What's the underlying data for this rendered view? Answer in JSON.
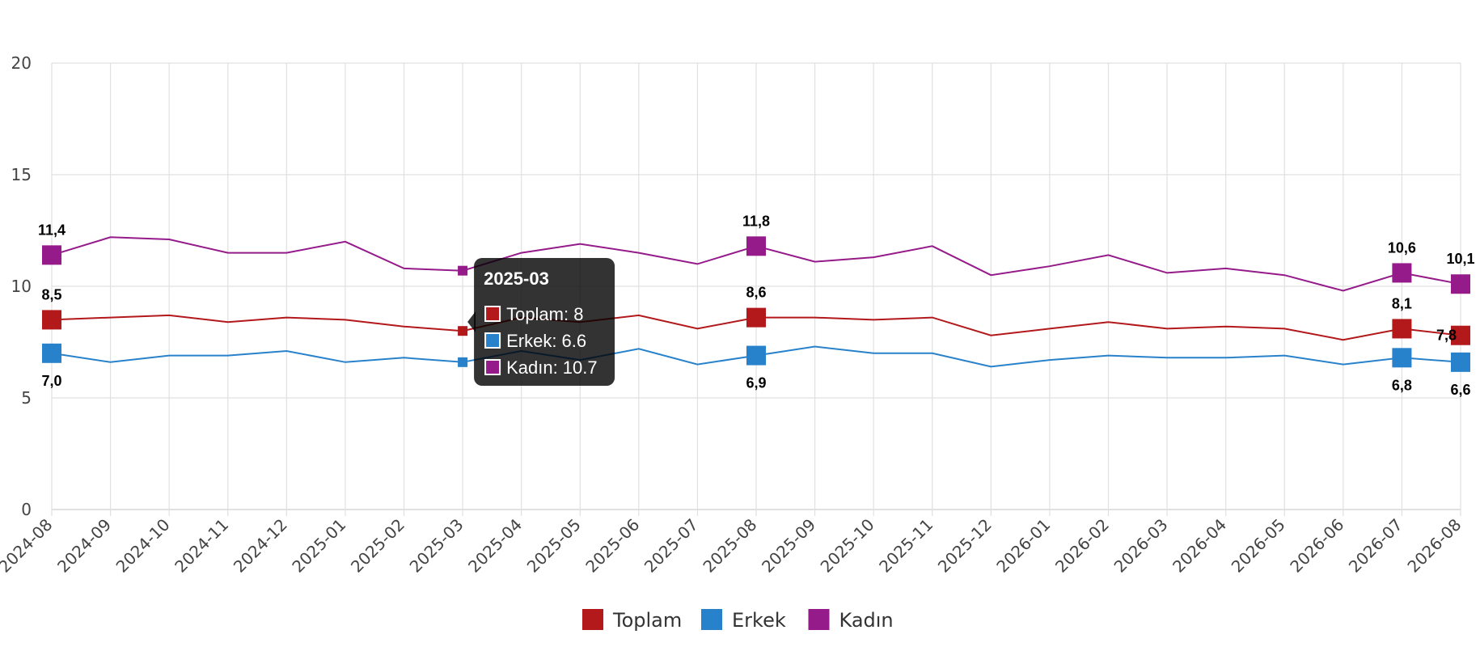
{
  "chart_data": {
    "type": "line",
    "categories": [
      "2024-08",
      "2024-09",
      "2024-10",
      "2024-11",
      "2024-12",
      "2025-01",
      "2025-02",
      "2025-03",
      "2025-04",
      "2025-05",
      "2025-06",
      "2025-07",
      "2025-08",
      "2025-09",
      "2025-10",
      "2025-11",
      "2025-12",
      "2026-01",
      "2026-02",
      "2026-03",
      "2026-04",
      "2026-05",
      "2026-06",
      "2026-07",
      "2026-08"
    ],
    "ylim": [
      0,
      20
    ],
    "yticks": [
      0,
      5,
      10,
      15,
      20
    ],
    "grid": true,
    "legend_position": "bottom-center",
    "series": [
      {
        "name": "Toplam",
        "color": "#b3181a",
        "values": [
          8.5,
          8.6,
          8.7,
          8.4,
          8.6,
          8.5,
          8.2,
          8.0,
          8.6,
          8.4,
          8.7,
          8.1,
          8.6,
          8.6,
          8.5,
          8.6,
          7.8,
          8.1,
          8.4,
          8.1,
          8.2,
          8.1,
          7.6,
          8.1,
          7.8
        ],
        "labels": [
          {
            "i": 0,
            "text": "8,5",
            "pos": "above"
          },
          {
            "i": 12,
            "text": "8,6",
            "pos": "above"
          },
          {
            "i": 23,
            "text": "8,1",
            "pos": "above"
          },
          {
            "i": 24,
            "text": "7,8",
            "pos": "left"
          }
        ]
      },
      {
        "name": "Erkek",
        "color": "#2882cb",
        "values": [
          7.0,
          6.6,
          6.9,
          6.9,
          7.1,
          6.6,
          6.8,
          6.6,
          7.1,
          6.7,
          7.2,
          6.5,
          6.9,
          7.3,
          7.0,
          7.0,
          6.4,
          6.7,
          6.9,
          6.8,
          6.8,
          6.9,
          6.5,
          6.8,
          6.6
        ],
        "labels": [
          {
            "i": 0,
            "text": "7,0",
            "pos": "below"
          },
          {
            "i": 12,
            "text": "6,9",
            "pos": "below"
          },
          {
            "i": 23,
            "text": "6,8",
            "pos": "below"
          },
          {
            "i": 24,
            "text": "6,6",
            "pos": "below"
          }
        ]
      },
      {
        "name": "Kadın",
        "color": "#951a8a",
        "values": [
          11.4,
          12.2,
          12.1,
          11.5,
          11.5,
          12.0,
          10.8,
          10.7,
          11.5,
          11.9,
          11.5,
          11.0,
          11.8,
          11.1,
          11.3,
          11.8,
          10.5,
          10.9,
          11.4,
          10.6,
          10.8,
          10.5,
          9.8,
          10.6,
          10.1
        ],
        "labels": [
          {
            "i": 0,
            "text": "11,4",
            "pos": "above"
          },
          {
            "i": 12,
            "text": "11,8",
            "pos": "above"
          },
          {
            "i": 23,
            "text": "10,6",
            "pos": "above"
          },
          {
            "i": 24,
            "text": "10,1",
            "pos": "above"
          }
        ]
      }
    ],
    "tooltip": {
      "index": 7,
      "title": "2025-03",
      "lines": [
        "Toplam: 8",
        "Erkek: 6.6",
        "Kadın: 10.7"
      ]
    }
  }
}
